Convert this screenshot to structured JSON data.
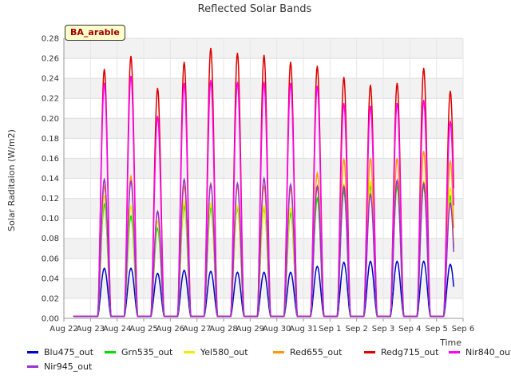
{
  "chart_data": {
    "type": "line",
    "title": "Reflected Solar Bands",
    "xlabel": "Time",
    "ylabel": "Solar Raditaion (W/m2)",
    "site_label": "BA_arable",
    "ylim": [
      0,
      0.28
    ],
    "yticks": [
      "0.00",
      "0.02",
      "0.04",
      "0.06",
      "0.08",
      "0.10",
      "0.12",
      "0.14",
      "0.16",
      "0.18",
      "0.20",
      "0.22",
      "0.24",
      "0.26",
      "0.28"
    ],
    "x_tick_labels": [
      "Aug 22",
      "Aug 23",
      "Aug 24",
      "Aug 25",
      "Aug 26",
      "Aug 27",
      "Aug 28",
      "Aug 29",
      "Aug 30",
      "Aug 31",
      "Sep 1",
      "Sep 2",
      "Sep 3",
      "Sep 4",
      "Sep 5",
      "Sep 6"
    ],
    "x_range_days": [
      0,
      15
    ],
    "daily_peak_day_offset": [
      1,
      2,
      3,
      4,
      5,
      6,
      7,
      8,
      9,
      10,
      11,
      12,
      13,
      14
    ],
    "series": [
      {
        "name": "Blu475_out",
        "color": "#0000cc",
        "peaks": [
          0.048,
          0.048,
          0.043,
          0.046,
          0.045,
          0.044,
          0.044,
          0.044,
          0.05,
          0.054,
          0.055,
          0.055,
          0.055,
          0.052
        ]
      },
      {
        "name": "Grn535_out",
        "color": "#00dd00",
        "peaks": [
          0.112,
          0.1,
          0.088,
          0.11,
          0.108,
          0.108,
          0.108,
          0.103,
          0.118,
          0.125,
          0.13,
          0.13,
          0.13,
          0.12
        ]
      },
      {
        "name": "Yel580_out",
        "color": "#eeee00",
        "peaks": [
          0.12,
          0.11,
          0.095,
          0.115,
          0.113,
          0.11,
          0.11,
          0.108,
          0.128,
          0.132,
          0.135,
          0.135,
          0.135,
          0.128
        ]
      },
      {
        "name": "Red655_out",
        "color": "#ff9900",
        "peaks": [
          0.13,
          0.14,
          0.105,
          0.13,
          0.133,
          0.13,
          0.13,
          0.128,
          0.143,
          0.157,
          0.158,
          0.158,
          0.165,
          0.155
        ]
      },
      {
        "name": "Redg715_out",
        "color": "#dd0000",
        "peaks": [
          0.247,
          0.26,
          0.228,
          0.254,
          0.268,
          0.263,
          0.261,
          0.254,
          0.25,
          0.239,
          0.231,
          0.233,
          0.248,
          0.225
        ]
      },
      {
        "name": "Nir840_out",
        "color": "#ff00ff",
        "peaks": [
          0.233,
          0.24,
          0.2,
          0.233,
          0.236,
          0.234,
          0.234,
          0.233,
          0.23,
          0.213,
          0.21,
          0.213,
          0.216,
          0.195
        ]
      },
      {
        "name": "Nir945_out",
        "color": "#9933cc",
        "peaks": [
          0.137,
          0.135,
          0.105,
          0.137,
          0.132,
          0.133,
          0.138,
          0.132,
          0.13,
          0.13,
          0.122,
          0.136,
          0.133,
          0.113
        ]
      }
    ]
  }
}
